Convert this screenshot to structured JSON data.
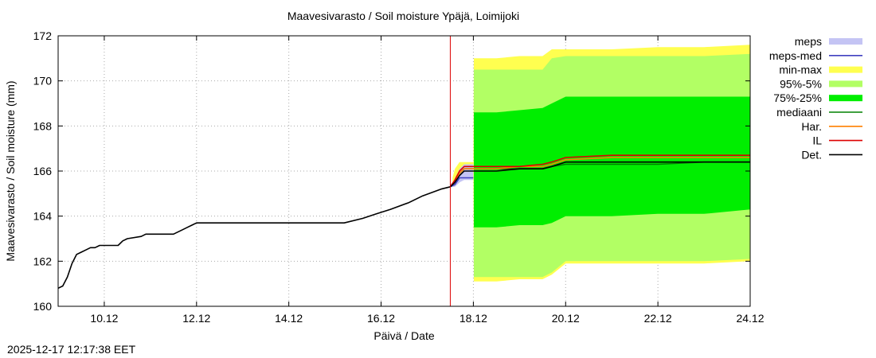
{
  "header": {
    "title": "Maavesivarasto / Soil moisture   Ypäjä, Loimijoki"
  },
  "footer": {
    "timestamp": "2025-12-17 12:17:38 EET"
  },
  "colors": {
    "meps": "#c4c4f4",
    "meps_med": "#4040c0",
    "min_max": "#ffff50",
    "p95_5": "#b2ff64",
    "p75_25": "#00ee00",
    "median": "#008000",
    "har": "#ff8000",
    "il": "#dd0000",
    "det": "#000000",
    "now_line": "#dd0000",
    "grid": "#aaaaaa"
  },
  "chart_data": {
    "type": "area",
    "title": "Maavesivarasto / Soil moisture   Ypäjä, Loimijoki",
    "xlabel": "Päivä / Date",
    "ylabel": "Maavesivarasto / Soil moisture (mm)",
    "x_unit": "days since 2025-12-09 00:00",
    "xlim": [
      0,
      15
    ],
    "ylim": [
      160,
      172
    ],
    "yticks": [
      160,
      162,
      164,
      166,
      168,
      170,
      172
    ],
    "xticks": [
      {
        "x": 1,
        "label": "10.12"
      },
      {
        "x": 3,
        "label": "12.12"
      },
      {
        "x": 5,
        "label": "14.12"
      },
      {
        "x": 7,
        "label": "16.12"
      },
      {
        "x": 9,
        "label": "18.12"
      },
      {
        "x": 11,
        "label": "20.12"
      },
      {
        "x": 13,
        "label": "22.12"
      },
      {
        "x": 15,
        "label": "24.12"
      }
    ],
    "grid": true,
    "now_x": 8.5,
    "legend_position": "right",
    "legend": [
      {
        "label": "meps",
        "key": "meps",
        "style": "band"
      },
      {
        "label": "meps-med",
        "key": "meps_med",
        "style": "line"
      },
      {
        "label": "min-max",
        "key": "min_max",
        "style": "band"
      },
      {
        "label": "95%-5%",
        "key": "p95_5",
        "style": "band"
      },
      {
        "label": "75%-25%",
        "key": "p75_25",
        "style": "band"
      },
      {
        "label": "mediaani",
        "key": "median",
        "style": "line"
      },
      {
        "label": "Har.",
        "key": "har",
        "style": "line"
      },
      {
        "label": "IL",
        "key": "il",
        "style": "line"
      },
      {
        "label": "Det.",
        "key": "det",
        "style": "line"
      }
    ],
    "bands": {
      "min_max": {
        "x": [
          8.55,
          8.6,
          8.7,
          8.8,
          8.9,
          9.0,
          9.01,
          9.5,
          10.0,
          10.5,
          10.7,
          11.0,
          12.0,
          13.0,
          14.0,
          15.0
        ],
        "upper": [
          165.7,
          166.1,
          166.4,
          166.4,
          166.4,
          166.4,
          171.0,
          171.0,
          171.1,
          171.1,
          171.4,
          171.4,
          171.4,
          171.5,
          171.5,
          171.6
        ],
        "lower": [
          165.3,
          165.3,
          165.5,
          165.8,
          165.9,
          165.9,
          161.1,
          161.1,
          161.2,
          161.2,
          161.4,
          161.9,
          161.9,
          161.9,
          161.9,
          162.0
        ]
      },
      "p95_5": {
        "x": [
          9.01,
          9.5,
          10.0,
          10.5,
          10.7,
          11.0,
          12.0,
          13.0,
          14.0,
          15.0
        ],
        "upper": [
          170.5,
          170.5,
          170.5,
          170.5,
          171.0,
          171.1,
          171.1,
          171.1,
          171.1,
          171.2
        ],
        "lower": [
          161.3,
          161.3,
          161.3,
          161.3,
          161.5,
          162.0,
          162.0,
          162.0,
          162.0,
          162.1
        ]
      },
      "p75_25": {
        "x": [
          9.01,
          9.5,
          10.0,
          10.5,
          10.7,
          11.0,
          12.0,
          13.0,
          14.0,
          15.0
        ],
        "upper": [
          168.6,
          168.6,
          168.7,
          168.8,
          169.0,
          169.3,
          169.3,
          169.3,
          169.3,
          169.3
        ],
        "lower": [
          163.5,
          163.5,
          163.6,
          163.6,
          163.7,
          164.0,
          164.0,
          164.1,
          164.1,
          164.3
        ]
      },
      "meps": {
        "x": [
          8.5,
          8.6,
          8.7,
          8.8,
          9.0
        ],
        "upper": [
          165.4,
          165.6,
          166.1,
          166.3,
          166.3
        ],
        "lower": [
          165.3,
          165.3,
          165.5,
          165.6,
          165.6
        ]
      }
    },
    "series": [
      {
        "name": "Det.",
        "key": "det",
        "x": [
          0,
          0.1,
          0.2,
          0.3,
          0.4,
          0.5,
          0.6,
          0.7,
          0.8,
          0.9,
          1.0,
          1.3,
          1.4,
          1.5,
          1.8,
          1.9,
          2.0,
          2.5,
          2.7,
          2.8,
          2.9,
          3.0,
          4.0,
          5.0,
          6.0,
          6.2,
          6.6,
          6.9,
          7.2,
          7.6,
          7.9,
          8.3,
          8.5,
          8.6,
          8.7,
          8.8,
          9.0,
          9.5,
          10.0,
          10.5,
          10.7,
          11.0,
          12.0,
          13.0,
          14.0,
          15.0
        ],
        "y": [
          160.8,
          160.9,
          161.3,
          161.9,
          162.3,
          162.4,
          162.5,
          162.6,
          162.6,
          162.7,
          162.7,
          162.7,
          162.9,
          163.0,
          163.1,
          163.2,
          163.2,
          163.2,
          163.4,
          163.5,
          163.6,
          163.7,
          163.7,
          163.7,
          163.7,
          163.7,
          163.9,
          164.1,
          164.3,
          164.6,
          164.9,
          165.2,
          165.3,
          165.5,
          165.8,
          166.0,
          166.0,
          166.0,
          166.1,
          166.1,
          166.2,
          166.4,
          166.4,
          166.4,
          166.4,
          166.4
        ]
      },
      {
        "name": "IL",
        "key": "il",
        "x": [
          8.5,
          8.6,
          8.7,
          8.8,
          9.0,
          9.5,
          10.0,
          10.5,
          10.7,
          11.0,
          12.0,
          13.0,
          14.0,
          15.0
        ],
        "y": [
          165.3,
          165.6,
          166.0,
          166.2,
          166.2,
          166.2,
          166.2,
          166.3,
          166.4,
          166.6,
          166.7,
          166.7,
          166.7,
          166.7
        ]
      },
      {
        "name": "Har.",
        "key": "har",
        "x": [
          8.5,
          8.6,
          8.7,
          8.8,
          9.0,
          9.5,
          10.0,
          10.5,
          10.7,
          11.0,
          12.0,
          13.0,
          14.0,
          15.0
        ],
        "y": [
          165.3,
          165.5,
          165.9,
          166.1,
          166.1,
          166.1,
          166.2,
          166.2,
          166.3,
          166.5,
          166.6,
          166.6,
          166.6,
          166.6
        ]
      },
      {
        "name": "mediaani",
        "key": "median",
        "x": [
          8.5,
          8.6,
          8.7,
          8.8,
          9.0,
          9.5,
          10.0,
          10.5,
          10.7,
          11.0,
          12.0,
          13.0,
          14.0,
          15.0
        ],
        "y": [
          165.3,
          165.5,
          165.9,
          166.1,
          166.1,
          166.1,
          166.1,
          166.1,
          166.2,
          166.3,
          166.3,
          166.3,
          166.4,
          166.4
        ]
      },
      {
        "name": "meps-med",
        "key": "meps_med",
        "x": [
          8.5,
          8.6,
          8.7,
          8.8,
          9.0
        ],
        "y": [
          165.3,
          165.4,
          165.7,
          165.7,
          165.7
        ]
      }
    ]
  }
}
